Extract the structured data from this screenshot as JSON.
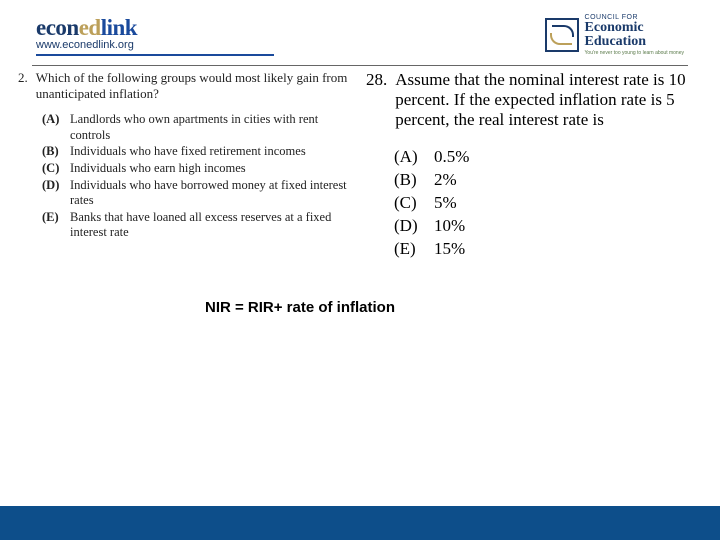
{
  "colors": {
    "blue": "#1a4a9c",
    "navy": "#1a3a6a",
    "gold": "#bca05a",
    "green_tag": "#5a7a4a",
    "rule": "#1a4a9c",
    "footer": "#0d4e8a",
    "text": "#222222"
  },
  "header": {
    "logo_left": {
      "part1": "econ",
      "part2": "ed",
      "part3": "link",
      "url": "www.econedlink.org"
    },
    "logo_right": {
      "top": "COUNCIL FOR",
      "line1": "Economic",
      "line2": "Education",
      "tagline": "You're never too young to learn about money"
    }
  },
  "question_left": {
    "number": "2.",
    "text": "Which of the following groups would most likely gain from unanticipated inflation?",
    "options": [
      {
        "label": "(A)",
        "text": "Landlords who own apartments in cities with rent controls"
      },
      {
        "label": "(B)",
        "text": "Individuals who have fixed retirement incomes"
      },
      {
        "label": "(C)",
        "text": "Individuals who earn high incomes"
      },
      {
        "label": "(D)",
        "text": "Individuals who have borrowed money at fixed interest rates"
      },
      {
        "label": "(E)",
        "text": "Banks that have loaned all excess reserves at a fixed interest rate"
      }
    ]
  },
  "question_right": {
    "number": "28.",
    "text": "Assume that the nominal interest rate is 10 percent. If the expected inflation rate is 5 percent, the real interest rate is",
    "options": [
      {
        "label": "(A)",
        "text": "0.5%"
      },
      {
        "label": "(B)",
        "text": "2%"
      },
      {
        "label": "(C)",
        "text": "5%"
      },
      {
        "label": "(D)",
        "text": "10%"
      },
      {
        "label": "(E)",
        "text": "15%"
      }
    ]
  },
  "formula": "NIR = RIR+ rate of inflation"
}
